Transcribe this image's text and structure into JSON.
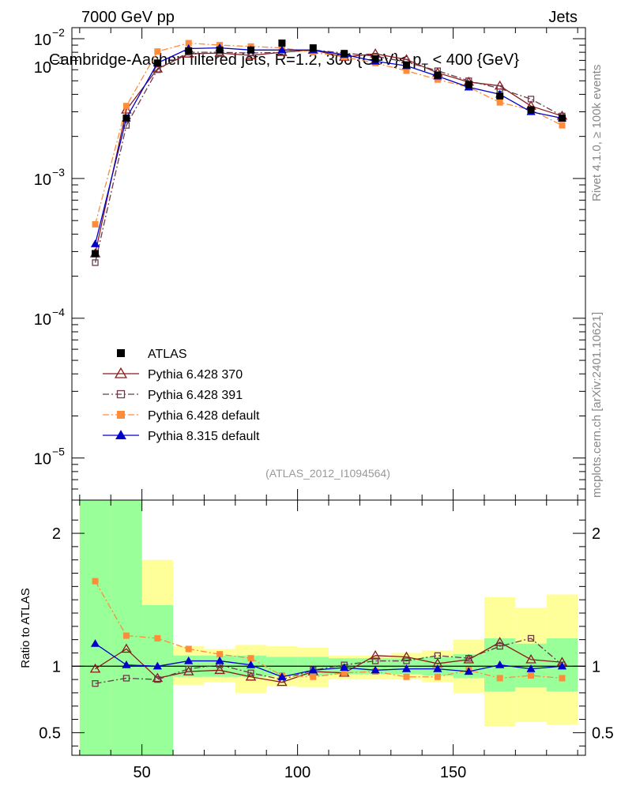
{
  "header": {
    "left": "7000 GeV pp",
    "right": "Jets",
    "title": "Cambridge-Aachen filtered jets, R=1.2, 300 {GeV}< p",
    "title_sub": "T",
    "title_end": " < 400 {GeV}",
    "side_right_top": "Rivet 4.1.0, ≥ 100k events",
    "side_right_bottom": "mcplots.cern.ch [arXiv:2401.10621]",
    "analysis_id": "(ATLAS_2012_I1094564)"
  },
  "chart_data": {
    "type": "line",
    "x": [
      35,
      45,
      55,
      65,
      75,
      85,
      95,
      105,
      115,
      125,
      135,
      145,
      155,
      165,
      175,
      185
    ],
    "xlim": [
      27.5,
      192.5
    ],
    "xticks": [
      50,
      100,
      150
    ],
    "main": {
      "yscale": "log",
      "ylim": [
        5e-06,
        0.012
      ],
      "yticks": [
        {
          "value": 1e-05,
          "label": "10",
          "exp": "−5"
        },
        {
          "value": 0.0001,
          "label": "10",
          "exp": "−4"
        },
        {
          "value": 0.001,
          "label": "10",
          "exp": "−3"
        },
        {
          "value": 0.01,
          "label": "10",
          "exp": "−2"
        }
      ],
      "top_label": "10",
      "top_exp": "−1"
    },
    "ratio": {
      "ylabel": "Ratio to ATLAS",
      "ylim": [
        0.33,
        2.25
      ],
      "yticks": [
        0.5,
        1,
        2
      ],
      "ytick_labels": [
        "0.5",
        "1",
        "2"
      ],
      "band_inner": [
        [
          0.3,
          2.3
        ],
        [
          0.3,
          2.3
        ],
        [
          0.3,
          1.46
        ],
        [
          0.92,
          1.08
        ],
        [
          0.92,
          1.08
        ],
        [
          0.92,
          1.08
        ],
        [
          0.93,
          1.07
        ],
        [
          0.93,
          1.07
        ],
        [
          0.94,
          1.06
        ],
        [
          0.94,
          1.06
        ],
        [
          0.94,
          1.06
        ],
        [
          0.93,
          1.07
        ],
        [
          0.91,
          1.09
        ],
        [
          0.81,
          1.21
        ],
        [
          0.84,
          1.17
        ],
        [
          0.81,
          1.21
        ]
      ],
      "band_outer": [
        [
          0.3,
          2.3
        ],
        [
          0.3,
          2.2
        ],
        [
          0.3,
          1.8
        ],
        [
          0.86,
          1.15
        ],
        [
          0.88,
          1.13
        ],
        [
          0.8,
          1.16
        ],
        [
          0.85,
          1.15
        ],
        [
          0.84,
          1.14
        ],
        [
          0.9,
          1.08
        ],
        [
          0.9,
          1.08
        ],
        [
          0.9,
          1.1
        ],
        [
          0.88,
          1.12
        ],
        [
          0.8,
          1.2
        ],
        [
          0.55,
          1.52
        ],
        [
          0.58,
          1.44
        ],
        [
          0.56,
          1.54
        ]
      ]
    },
    "series": [
      {
        "name": "ATLAS",
        "color": "#000000",
        "marker": "square-filled",
        "line": "none",
        "values": [
          0.00029,
          0.0027,
          0.0067,
          0.0082,
          0.0083,
          0.0083,
          0.0093,
          0.0086,
          0.0078,
          0.0072,
          0.0065,
          0.0055,
          0.0047,
          0.0039,
          0.0031,
          0.0027
        ],
        "ratio": [
          1,
          1,
          1,
          1,
          1,
          1,
          1,
          1,
          1,
          1,
          1,
          1,
          1,
          1,
          1,
          1
        ]
      },
      {
        "name": "Pythia 6.428 370",
        "color": "#8b1a1a",
        "marker": "triangle-open",
        "line": "solid",
        "values": [
          0.00029,
          0.0031,
          0.0061,
          0.0078,
          0.0079,
          0.0076,
          0.008,
          0.0083,
          0.0074,
          0.0078,
          0.0071,
          0.0057,
          0.0049,
          0.0046,
          0.0033,
          0.0028
        ],
        "ratio": [
          0.98,
          1.13,
          0.91,
          0.96,
          0.97,
          0.92,
          0.88,
          0.96,
          0.95,
          1.08,
          1.07,
          1.02,
          1.05,
          1.18,
          1.05,
          1.03
        ]
      },
      {
        "name": "Pythia 6.428 391",
        "color": "#6b3a4a",
        "marker": "square-open",
        "line": "dashdot",
        "values": [
          0.00025,
          0.0024,
          0.006,
          0.008,
          0.008,
          0.0079,
          0.008,
          0.0083,
          0.0079,
          0.0075,
          0.0068,
          0.0059,
          0.005,
          0.0044,
          0.0037,
          0.0028
        ],
        "ratio": [
          0.87,
          0.91,
          0.9,
          0.98,
          1.01,
          0.95,
          0.9,
          0.97,
          1.01,
          1.04,
          1.04,
          1.08,
          1.06,
          1.15,
          1.21,
          1.01
        ]
      },
      {
        "name": "Pythia 6.428 default",
        "color": "#ff8c3a",
        "marker": "square-filled",
        "line": "dashdot",
        "values": [
          0.00047,
          0.0033,
          0.0081,
          0.0093,
          0.009,
          0.0088,
          0.0086,
          0.008,
          0.0074,
          0.0067,
          0.0059,
          0.0051,
          0.0045,
          0.0035,
          0.0031,
          0.0024
        ],
        "ratio": [
          1.64,
          1.23,
          1.21,
          1.13,
          1.09,
          1.06,
          0.93,
          0.92,
          0.95,
          0.96,
          0.92,
          0.92,
          0.97,
          0.91,
          0.93,
          0.91
        ]
      },
      {
        "name": "Pythia 8.315 default",
        "color": "#0000cc",
        "marker": "triangle-filled",
        "line": "solid",
        "values": [
          0.00034,
          0.0027,
          0.0067,
          0.0085,
          0.0086,
          0.0083,
          0.0083,
          0.0083,
          0.0077,
          0.0069,
          0.0064,
          0.0054,
          0.0045,
          0.004,
          0.003,
          0.0027
        ],
        "ratio": [
          1.17,
          1.01,
          1.0,
          1.04,
          1.04,
          1.01,
          0.92,
          0.97,
          0.99,
          0.97,
          0.98,
          0.98,
          0.96,
          1.01,
          0.98,
          1.0
        ]
      }
    ]
  }
}
